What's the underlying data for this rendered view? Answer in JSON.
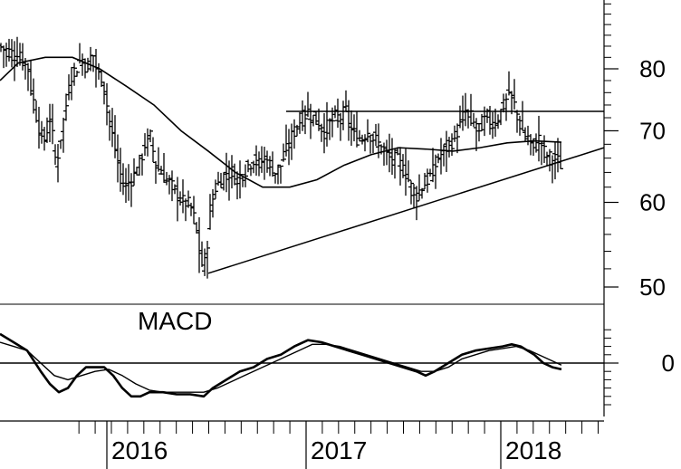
{
  "chart_data": [
    {
      "type": "ohlc",
      "panel": "price",
      "y_scale": "log",
      "ylim": [
        46,
        95
      ],
      "y_ticks": [
        {
          "value": 50,
          "label": "50"
        },
        {
          "value": 60,
          "label": "60"
        },
        {
          "value": 70,
          "label": "70"
        },
        {
          "value": 80,
          "label": "80"
        }
      ],
      "x_ticks": [
        {
          "t": 118,
          "label": "2016"
        },
        {
          "t": 338,
          "label": "2017"
        },
        {
          "t": 553,
          "label": "2018"
        }
      ],
      "price_points": [
        [
          0,
          84
        ],
        [
          10,
          83
        ],
        [
          20,
          82
        ],
        [
          30,
          81
        ],
        [
          35,
          76
        ],
        [
          42,
          71
        ],
        [
          48,
          68
        ],
        [
          55,
          72
        ],
        [
          62,
          65
        ],
        [
          68,
          70
        ],
        [
          72,
          73
        ],
        [
          78,
          79
        ],
        [
          84,
          80
        ],
        [
          90,
          82
        ],
        [
          96,
          80
        ],
        [
          102,
          83
        ],
        [
          108,
          79
        ],
        [
          114,
          78
        ],
        [
          120,
          72
        ],
        [
          126,
          68
        ],
        [
          132,
          64
        ],
        [
          138,
          62
        ],
        [
          144,
          63
        ],
        [
          150,
          64
        ],
        [
          156,
          66
        ],
        [
          160,
          68
        ],
        [
          166,
          69
        ],
        [
          172,
          65
        ],
        [
          178,
          64
        ],
        [
          184,
          63
        ],
        [
          190,
          62
        ],
        [
          196,
          61
        ],
        [
          202,
          60
        ],
        [
          206,
          60
        ],
        [
          212,
          59
        ],
        [
          216,
          57
        ],
        [
          220,
          54
        ],
        [
          224,
          52
        ],
        [
          228,
          54
        ],
        [
          232,
          59
        ],
        [
          238,
          62
        ],
        [
          244,
          63
        ],
        [
          250,
          64
        ],
        [
          256,
          64
        ],
        [
          262,
          63
        ],
        [
          268,
          64
        ],
        [
          274,
          65
        ],
        [
          280,
          66
        ],
        [
          286,
          65
        ],
        [
          292,
          66
        ],
        [
          298,
          65
        ],
        [
          304,
          64
        ],
        [
          310,
          65
        ],
        [
          316,
          67
        ],
        [
          322,
          69
        ],
        [
          328,
          71
        ],
        [
          334,
          72
        ],
        [
          340,
          73
        ],
        [
          346,
          72
        ],
        [
          352,
          71
        ],
        [
          358,
          70
        ],
        [
          364,
          71
        ],
        [
          370,
          72
        ],
        [
          376,
          72
        ],
        [
          382,
          73
        ],
        [
          388,
          70
        ],
        [
          394,
          69
        ],
        [
          400,
          69
        ],
        [
          406,
          70
        ],
        [
          412,
          69
        ],
        [
          418,
          68
        ],
        [
          424,
          67
        ],
        [
          430,
          66
        ],
        [
          436,
          66
        ],
        [
          442,
          65
        ],
        [
          448,
          64
        ],
        [
          454,
          62
        ],
        [
          460,
          61
        ],
        [
          466,
          62
        ],
        [
          472,
          63
        ],
        [
          478,
          64
        ],
        [
          484,
          66
        ],
        [
          490,
          67
        ],
        [
          496,
          68
        ],
        [
          502,
          69
        ],
        [
          508,
          71
        ],
        [
          514,
          73
        ],
        [
          520,
          72
        ],
        [
          526,
          70
        ],
        [
          532,
          71
        ],
        [
          538,
          72
        ],
        [
          544,
          71
        ],
        [
          550,
          72
        ],
        [
          556,
          74
        ],
        [
          562,
          76
        ],
        [
          568,
          74
        ],
        [
          574,
          71
        ],
        [
          580,
          69
        ],
        [
          586,
          68
        ],
        [
          592,
          68
        ],
        [
          596,
          69
        ],
        [
          600,
          67
        ],
        [
          606,
          66
        ],
        [
          612,
          66
        ],
        [
          620,
          65
        ]
      ],
      "moving_average": [
        [
          0,
          78
        ],
        [
          20,
          81
        ],
        [
          50,
          82
        ],
        [
          80,
          82
        ],
        [
          110,
          80
        ],
        [
          140,
          77
        ],
        [
          170,
          74
        ],
        [
          200,
          70
        ],
        [
          230,
          67
        ],
        [
          260,
          64
        ],
        [
          290,
          62
        ],
        [
          320,
          62
        ],
        [
          350,
          63
        ],
        [
          380,
          65
        ],
        [
          410,
          66.5
        ],
        [
          440,
          67.5
        ],
        [
          470,
          67.3
        ],
        [
          500,
          67
        ],
        [
          530,
          67.5
        ],
        [
          560,
          68.2
        ],
        [
          590,
          68.5
        ],
        [
          620,
          68.3
        ]
      ],
      "resistance_line": {
        "t": [
          316,
          667
        ],
        "price": [
          73,
          73
        ]
      },
      "support_line": {
        "t": [
          230,
          667
        ],
        "price": [
          51.5,
          67.5
        ]
      }
    },
    {
      "type": "line",
      "panel": "indicator",
      "title": "MACD",
      "ylim": [
        -10,
        10
      ],
      "y_ticks": [
        {
          "value": 0,
          "label": "0"
        }
      ],
      "series": [
        {
          "values": [
            [
              0,
              7
            ],
            [
              15,
              5
            ],
            [
              30,
              3
            ],
            [
              45,
              -2
            ],
            [
              55,
              -5
            ],
            [
              65,
              -7
            ],
            [
              75,
              -6
            ],
            [
              85,
              -3
            ],
            [
              95,
              -1
            ],
            [
              105,
              -1
            ],
            [
              115,
              -1
            ],
            [
              125,
              -3
            ],
            [
              135,
              -6
            ],
            [
              145,
              -8
            ],
            [
              155,
              -8
            ],
            [
              165,
              -7
            ],
            [
              180,
              -7
            ],
            [
              195,
              -7.5
            ],
            [
              210,
              -7.5
            ],
            [
              225,
              -8
            ],
            [
              235,
              -6
            ],
            [
              250,
              -4
            ],
            [
              265,
              -2
            ],
            [
              280,
              -1
            ],
            [
              295,
              1
            ],
            [
              310,
              2
            ],
            [
              325,
              4
            ],
            [
              340,
              5.5
            ],
            [
              355,
              5
            ],
            [
              370,
              4
            ],
            [
              385,
              3
            ],
            [
              400,
              2
            ],
            [
              415,
              1
            ],
            [
              430,
              0
            ],
            [
              445,
              -1
            ],
            [
              460,
              -2
            ],
            [
              470,
              -3
            ],
            [
              480,
              -2
            ],
            [
              495,
              0
            ],
            [
              510,
              2
            ],
            [
              525,
              3
            ],
            [
              540,
              3.5
            ],
            [
              555,
              4
            ],
            [
              565,
              4.5
            ],
            [
              575,
              4
            ],
            [
              590,
              2
            ],
            [
              600,
              0
            ],
            [
              610,
              -1
            ],
            [
              620,
              -1.5
            ]
          ]
        },
        {
          "values": [
            [
              0,
              5
            ],
            [
              15,
              4
            ],
            [
              30,
              3
            ],
            [
              45,
              0
            ],
            [
              60,
              -3
            ],
            [
              75,
              -4
            ],
            [
              90,
              -3
            ],
            [
              105,
              -2
            ],
            [
              120,
              -1.5
            ],
            [
              135,
              -3
            ],
            [
              150,
              -5
            ],
            [
              165,
              -6.5
            ],
            [
              180,
              -7
            ],
            [
              195,
              -7
            ],
            [
              210,
              -7
            ],
            [
              225,
              -7
            ],
            [
              240,
              -6
            ],
            [
              255,
              -4.5
            ],
            [
              270,
              -3
            ],
            [
              285,
              -1.5
            ],
            [
              300,
              0
            ],
            [
              315,
              1.5
            ],
            [
              330,
              3
            ],
            [
              345,
              4.5
            ],
            [
              360,
              4.5
            ],
            [
              375,
              4
            ],
            [
              390,
              3
            ],
            [
              405,
              2
            ],
            [
              420,
              1
            ],
            [
              435,
              0
            ],
            [
              450,
              -1
            ],
            [
              465,
              -2
            ],
            [
              480,
              -2
            ],
            [
              495,
              -1
            ],
            [
              510,
              1
            ],
            [
              525,
              2
            ],
            [
              540,
              3
            ],
            [
              555,
              3.5
            ],
            [
              570,
              4
            ],
            [
              585,
              3
            ],
            [
              600,
              1.5
            ],
            [
              615,
              0
            ],
            [
              620,
              -0.5
            ]
          ]
        }
      ]
    }
  ]
}
